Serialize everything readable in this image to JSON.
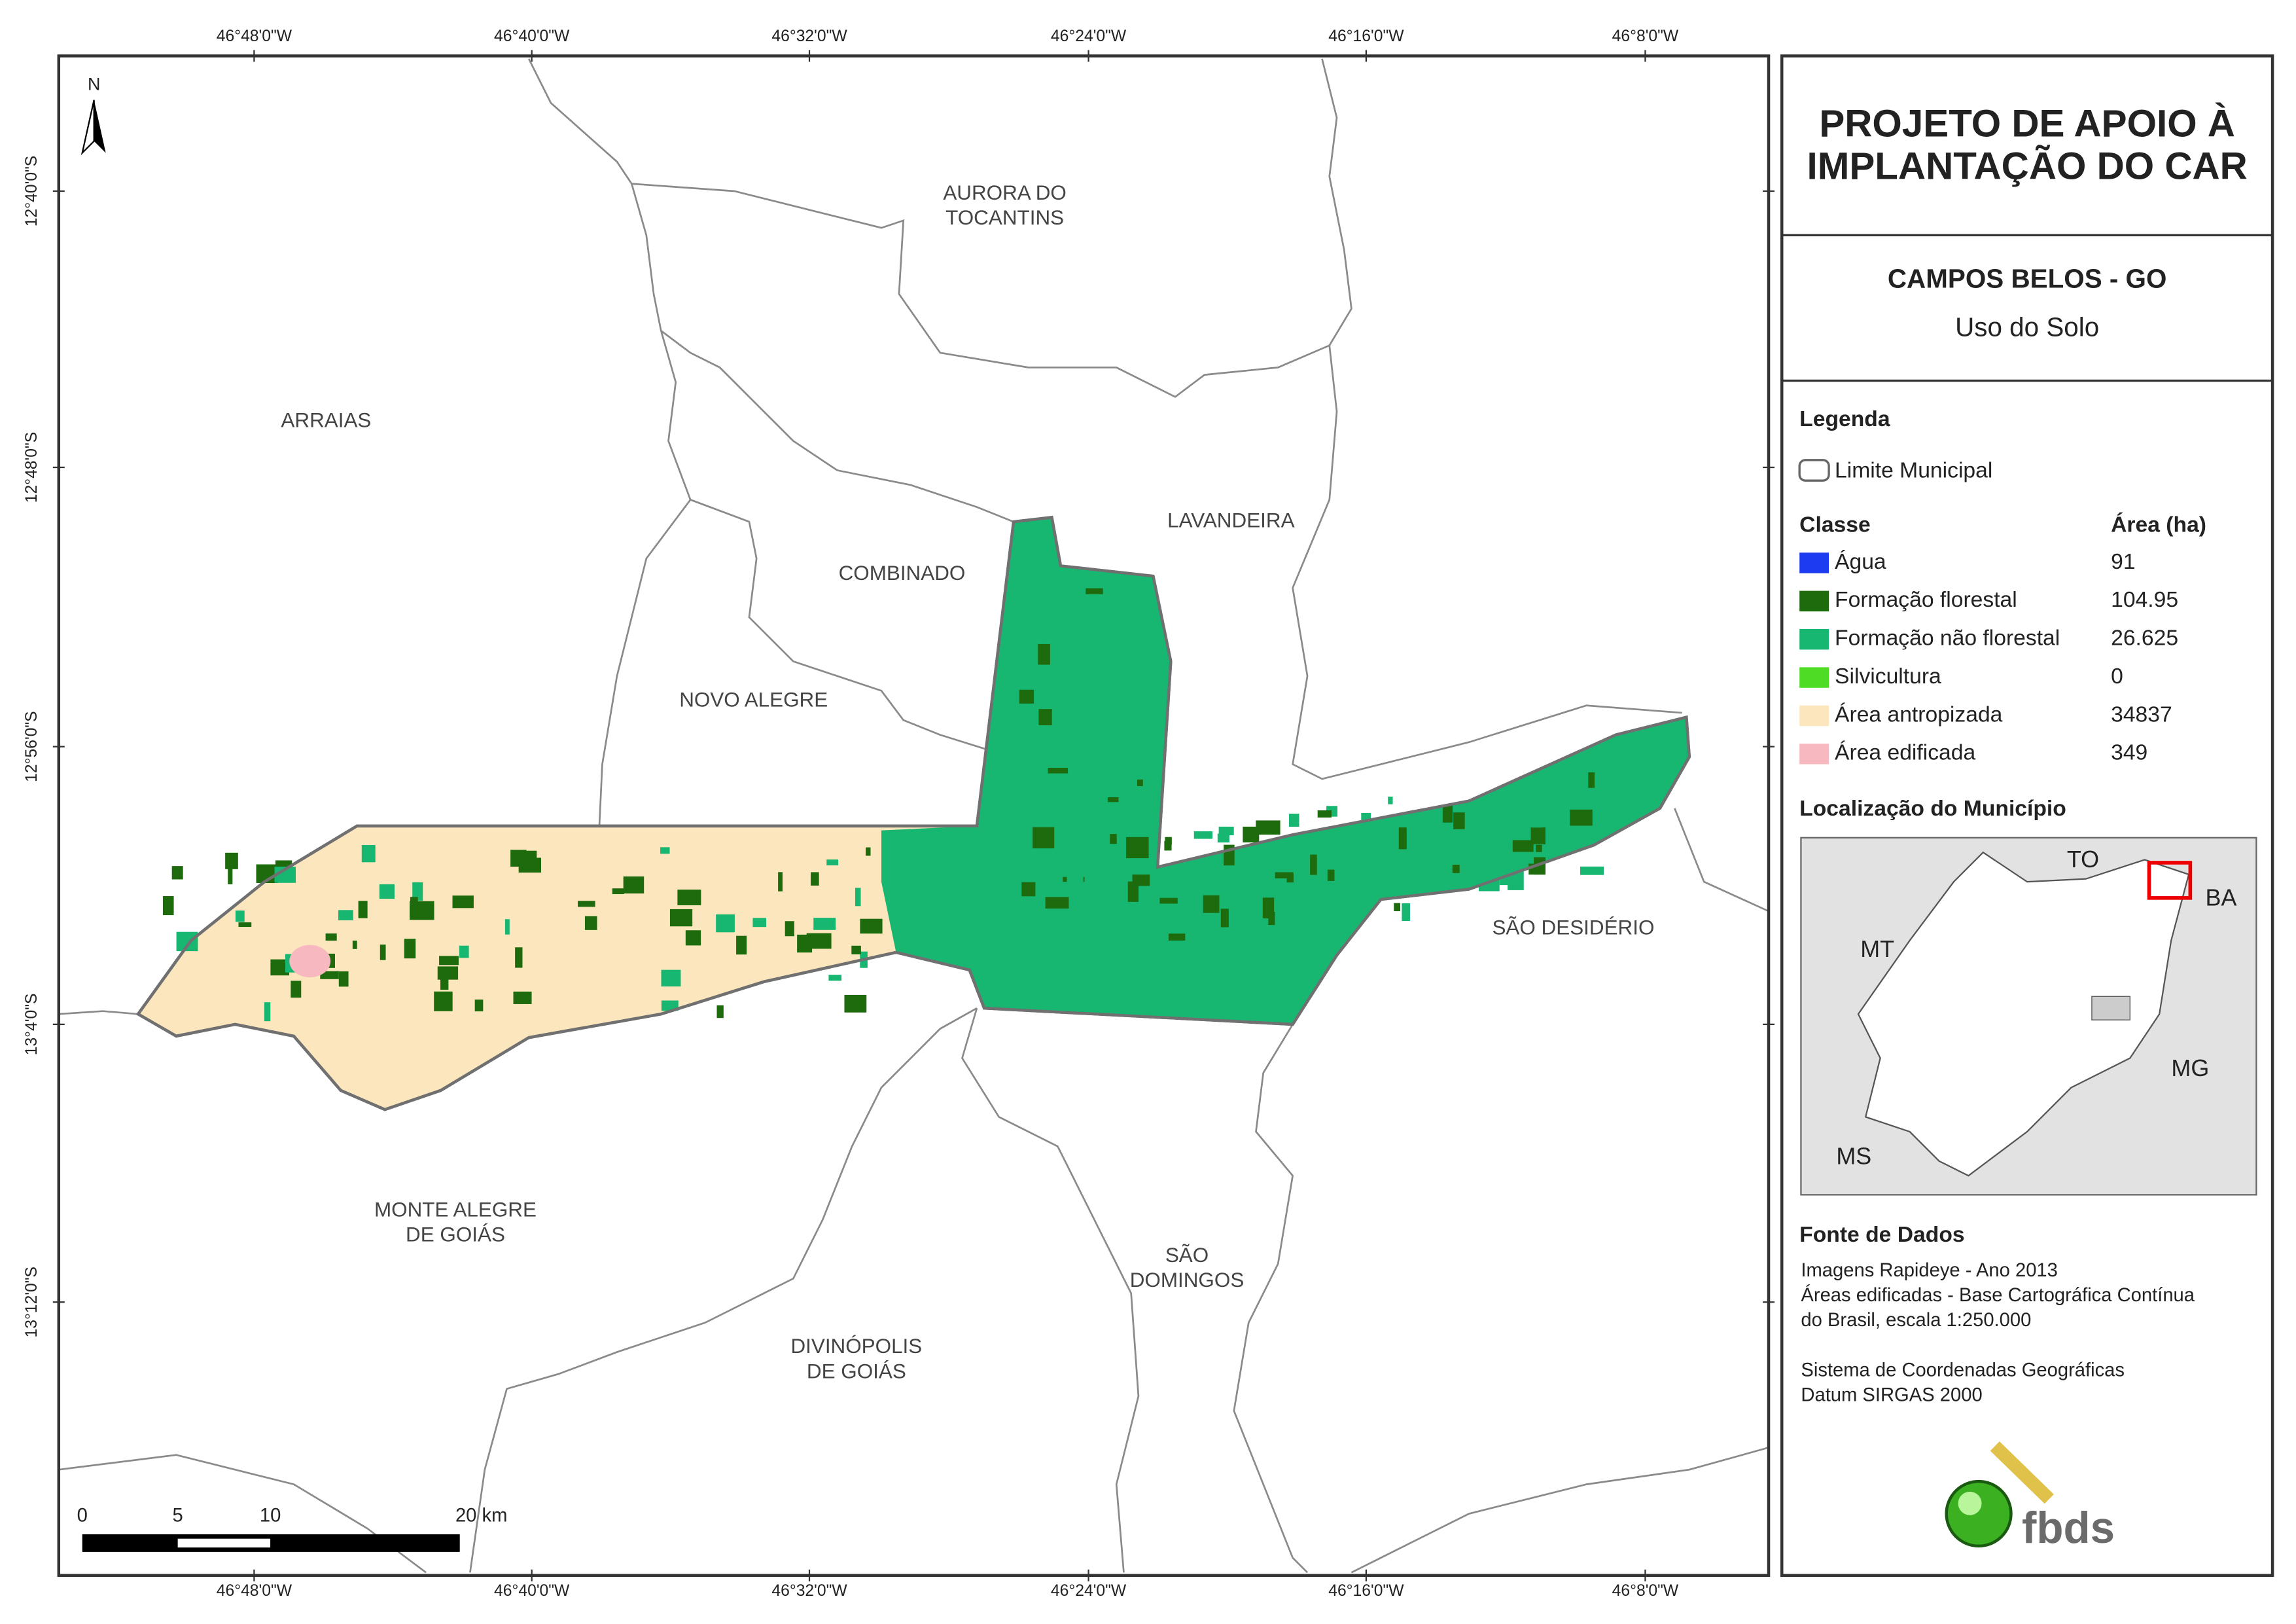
{
  "header": {
    "title_lines": [
      "PROJETO DE APOIO À",
      "IMPLANTAÇÃO DO CAR"
    ],
    "municipality": "CAMPOS BELOS - GO",
    "theme": "Uso do Solo"
  },
  "map": {
    "x_labels": [
      "46°48'0\"W",
      "46°40'0\"W",
      "46°32'0\"W",
      "46°24'0\"W",
      "46°16'0\"W",
      "46°8'0\"W"
    ],
    "y_labels": [
      "12°40'0\"S",
      "12°48'0\"S",
      "12°56'0\"S",
      "13°4'0\"S",
      "13°12'0\"S"
    ],
    "places": [
      [
        "AURORA DO",
        "TOCANTINS"
      ],
      [
        "ARRAIAS"
      ],
      [
        "LAVANDEIRA"
      ],
      [
        "COMBINADO"
      ],
      [
        "NOVO ALEGRE"
      ],
      [
        "SÃO DESIDÉRIO"
      ],
      [
        "MONTE ALEGRE",
        "DE GOIÁS"
      ],
      [
        "SÃO",
        "DOMINGOS"
      ],
      [
        "DIVINÓPOLIS",
        "DE GOIÁS"
      ]
    ],
    "north": "N",
    "scale_labels": [
      "0",
      "5",
      "10",
      "20 km"
    ]
  },
  "legend": {
    "title": "Legenda",
    "boundary": "Limite Municipal",
    "class_header": "Classe",
    "area_header": "Área (ha)",
    "classes": [
      {
        "name": "Água",
        "area": "91",
        "color": "#1d3cf2"
      },
      {
        "name": "Formação florestal",
        "area": "104.95",
        "color": "#1e6b0e"
      },
      {
        "name": "Formação não florestal",
        "area": "26.625",
        "color": "#17b772"
      },
      {
        "name": "Silvicultura",
        "area": "0",
        "color": "#4fdc24"
      },
      {
        "name": "Área antropizada",
        "area": "34837",
        "color": "#fbe6bd"
      },
      {
        "name": "Área edificada",
        "area": "349",
        "color": "#f7b9bf"
      }
    ]
  },
  "locator": {
    "title": "Localização do Município",
    "labels": [
      "TO",
      "BA",
      "MT",
      "MG",
      "MS"
    ]
  },
  "sources": {
    "title": "Fonte de Dados",
    "lines": [
      "Imagens Rapideye - Ano 2013",
      "Áreas edificadas - Base Cartográfica Contínua",
      "do Brasil, escala 1:250.000",
      "Sistema de Coordenadas Geográficas",
      "Datum SIRGAS 2000"
    ]
  },
  "logo": "fbds"
}
